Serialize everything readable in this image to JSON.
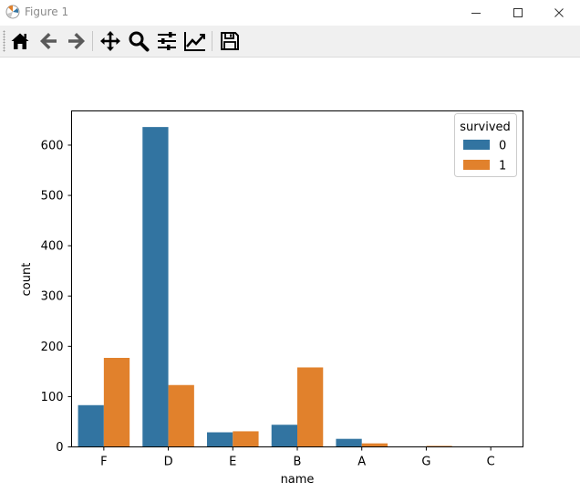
{
  "window": {
    "title": "Figure 1",
    "controls": {
      "minimize": "minimize",
      "maximize": "maximize",
      "close": "close"
    }
  },
  "toolbar": {
    "tools": [
      {
        "name": "home",
        "icon": "home-icon"
      },
      {
        "name": "back",
        "icon": "arrow-left-icon"
      },
      {
        "name": "forward",
        "icon": "arrow-right-icon"
      },
      {
        "name": "pan",
        "icon": "move-icon"
      },
      {
        "name": "zoom",
        "icon": "magnifier-icon"
      },
      {
        "name": "configure-subplots",
        "icon": "sliders-icon"
      },
      {
        "name": "edit-axis",
        "icon": "line-chart-icon"
      },
      {
        "name": "save",
        "icon": "floppy-disk-icon"
      }
    ]
  },
  "colors": {
    "series0": "#3274a1",
    "series1": "#e1812c",
    "axis": "#000000"
  },
  "chart_data": {
    "type": "bar",
    "categories": [
      "F",
      "D",
      "E",
      "B",
      "A",
      "G",
      "C"
    ],
    "series": [
      {
        "name": "0",
        "values": [
          83,
          636,
          29,
          44,
          16,
          0,
          0
        ]
      },
      {
        "name": "1",
        "values": [
          177,
          123,
          31,
          158,
          7,
          2,
          0
        ]
      }
    ],
    "xlabel": "name",
    "ylabel": "count",
    "ylim": [
      0,
      668
    ],
    "yticks": [
      0,
      100,
      200,
      300,
      400,
      500,
      600
    ],
    "legend": {
      "title": "survived",
      "placement": "top-right",
      "entries": [
        "0",
        "1"
      ]
    },
    "grid": false
  }
}
